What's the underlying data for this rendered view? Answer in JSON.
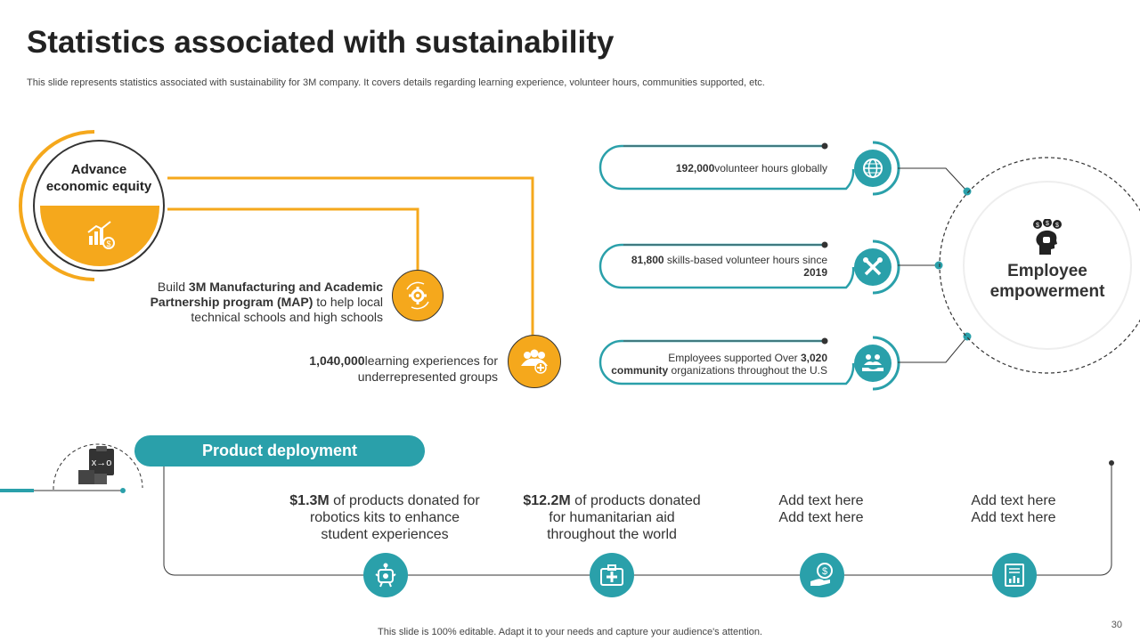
{
  "title": "Statistics associated with sustainability",
  "subtitle": "This slide represents statistics associated with sustainability for 3M company. It covers details regarding learning experience, volunteer hours, communities supported, etc.",
  "footer": "This slide is 100% editable. Adapt it to your needs and capture your audience's attention.",
  "page_number": "30",
  "colors": {
    "orange": "#f5a81c",
    "teal": "#2aa0aa"
  },
  "economic": {
    "title": "Advance economic equity",
    "icon": "chart-money-icon",
    "map": {
      "pre": "Build ",
      "bold": "3M Manufacturing and Academic Partnership program (MAP)",
      "post": " to help local technical schools and high schools",
      "icon": "gear-cycle-icon"
    },
    "learning": {
      "bold": "1,040,000",
      "post": "learning experiences for underrepresented groups",
      "icon": "people-add-icon"
    }
  },
  "employee": {
    "title": "Employee empowerment",
    "icon": "head-money-icon",
    "items": [
      {
        "bold": "192,000",
        "post": "volunteer hours globally",
        "icon": "globe-icon"
      },
      {
        "bold": "81,800",
        "mid": " skills-based volunteer hours since ",
        "bold2": "2019",
        "icon": "tools-icon"
      },
      {
        "pre": "Employees supported Over ",
        "bold": "3,020",
        "bold2": "community",
        "post": " organizations throughout the U.S",
        "icon": "hand-people-icon"
      }
    ]
  },
  "product": {
    "title": "Product deployment",
    "icon": "clipboard-boxes-icon",
    "items": [
      {
        "bold": "$1.3M",
        "post": " of products donated for robotics kits to enhance student experiences",
        "icon": "robot-icon"
      },
      {
        "bold": "$12.2M",
        "post": " of products donated for humanitarian aid throughout the world",
        "icon": "medical-kit-icon"
      },
      {
        "line1": "Add text here",
        "line2": "Add text here",
        "icon": "hand-money-icon"
      },
      {
        "line1": "Add text here",
        "line2": "Add text here",
        "icon": "document-chart-icon"
      }
    ]
  }
}
